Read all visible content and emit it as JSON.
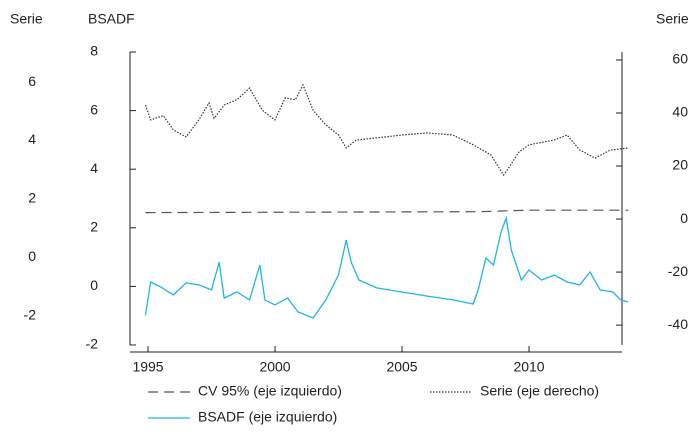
{
  "chart_data": {
    "type": "line",
    "ylabel": "BSADF",
    "y2label": "Serie",
    "y3label": "Serie",
    "xlim": [
      1994.29,
      2013.66
    ],
    "xticks": [
      1995,
      2000,
      2005,
      2010
    ],
    "ylim": [
      -2,
      8
    ],
    "yticks": [
      -2,
      0,
      2,
      4,
      6,
      8
    ],
    "y2lim": [
      -47.5,
      63
    ],
    "y2ticks": [
      -40,
      -20,
      0,
      20,
      40,
      60
    ],
    "y3lim": [
      -3,
      7.03
    ],
    "y3ticks": [
      -2,
      0,
      2,
      4,
      6
    ],
    "series": [
      {
        "name": "CV 95% (eje izquierdo)",
        "color": "#555555",
        "style": "dashed",
        "x": [
          1994.9,
          2008,
          2010,
          2013.9
        ],
        "values": [
          2.52,
          2.55,
          2.6,
          2.6
        ]
      },
      {
        "name": "Serie (eje derecho)",
        "color": "#333333",
        "style": "dotted",
        "axis": "y2",
        "x": [
          1994.9,
          1995.1,
          1995.6,
          1996,
          1996.5,
          1997,
          1997.4,
          1997.6,
          1998,
          1998.5,
          1999,
          1999.5,
          2000,
          2000.4,
          2000.8,
          2001.1,
          2001.5,
          2002,
          2002.5,
          2002.8,
          2003.2,
          2004,
          2005,
          2006,
          2007,
          2007.8,
          2008.5,
          2009,
          2009.2,
          2009.6,
          2010,
          2011,
          2011.5,
          2012,
          2012.6,
          2013.2,
          2013.9
        ],
        "values": [
          43,
          37.4,
          39,
          33.6,
          31,
          37.4,
          43.8,
          38,
          43,
          45,
          49.4,
          41,
          37.4,
          45.7,
          45,
          50.6,
          41,
          35.5,
          31.7,
          26.8,
          29.8,
          30.6,
          31.7,
          32.5,
          31.7,
          28,
          24.2,
          16.6,
          19.3,
          25.3,
          28,
          29.8,
          31.7,
          26,
          23,
          26,
          26.8
        ]
      },
      {
        "name": "BSADF (eje izquierdo)",
        "color": "#1fb6e0",
        "style": "solid",
        "x": [
          1994.9,
          1995.1,
          1995.5,
          1996,
          1996.5,
          1997,
          1997.5,
          1997.8,
          1998,
          1998.5,
          1999,
          1999.4,
          1999.6,
          2000,
          2000.5,
          2000.9,
          2001.5,
          2002,
          2002.5,
          2002.8,
          2003,
          2003.3,
          2004,
          2005,
          2006,
          2007,
          2007.8,
          2008,
          2008.3,
          2008.6,
          2008.9,
          2009.1,
          2009.3,
          2009.7,
          2010,
          2010.5,
          2011,
          2011.5,
          2012,
          2012.4,
          2012.8,
          2013.3,
          2013.6,
          2013.9
        ],
        "values": [
          -0.98,
          0.15,
          -0.02,
          -0.29,
          0.12,
          0.05,
          -0.12,
          0.83,
          -0.4,
          -0.19,
          -0.46,
          0.73,
          -0.46,
          -0.63,
          -0.4,
          -0.87,
          -1.08,
          -0.46,
          0.39,
          1.58,
          0.83,
          0.22,
          -0.05,
          -0.19,
          -0.33,
          -0.46,
          -0.6,
          -0.12,
          0.97,
          0.73,
          1.86,
          2.33,
          1.24,
          0.22,
          0.56,
          0.22,
          0.39,
          0.15,
          0.05,
          0.49,
          -0.12,
          -0.19,
          -0.46,
          -0.53
        ]
      }
    ]
  }
}
